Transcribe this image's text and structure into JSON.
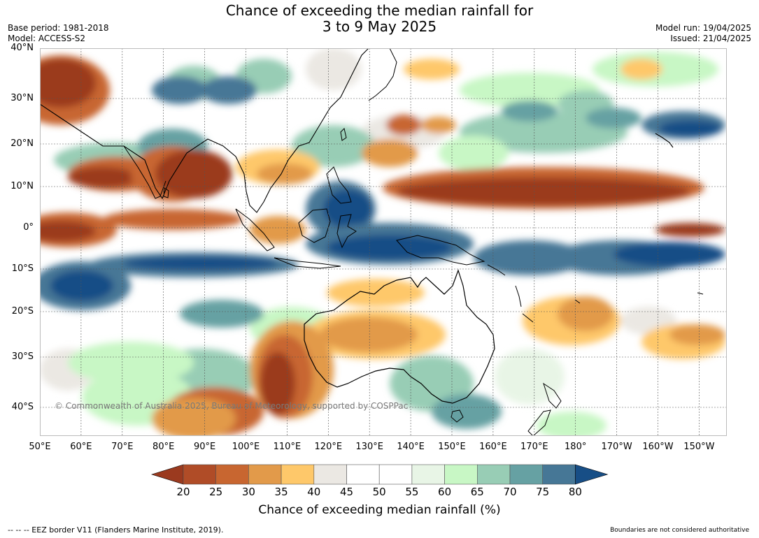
{
  "title": {
    "line1": "Chance of exceeding the median rainfall for",
    "line2": "3 to 9 May 2025"
  },
  "meta": {
    "base_period": "Base period: 1981-2018",
    "model": "Model: ACCESS-S2",
    "model_run": "Model run: 19/04/2025",
    "issued": "Issued: 21/04/2025"
  },
  "map": {
    "lat_labels": [
      "40°N",
      "30°N",
      "20°N",
      "10°N",
      "0°",
      "10°S",
      "20°S",
      "30°S",
      "40°S"
    ],
    "lon_labels": [
      "50°E",
      "60°E",
      "70°E",
      "80°E",
      "90°E",
      "100°E",
      "110°E",
      "120°E",
      "130°E",
      "140°E",
      "150°E",
      "160°E",
      "170°E",
      "180°",
      "170°W",
      "160°W",
      "150°W"
    ],
    "copyright": "© Commonwealth of Australia 2025, Bureau of Meteorology, supported by COSPPac",
    "categories": [
      {
        "range": "<20",
        "color": "#9b3a1f"
      },
      {
        "range": "20-25",
        "color": "#b04c27"
      },
      {
        "range": "25-30",
        "color": "#c86630"
      },
      {
        "range": "30-35",
        "color": "#e29a4a"
      },
      {
        "range": "35-40",
        "color": "#fec86a"
      },
      {
        "range": "40-45",
        "color": "#ebe8e3"
      },
      {
        "range": "45-50",
        "color": "#ffffff"
      },
      {
        "range": "50-55",
        "color": "#ffffff"
      },
      {
        "range": "55-60",
        "color": "#e8f5e6"
      },
      {
        "range": "60-65",
        "color": "#c8f7c5"
      },
      {
        "range": "65-70",
        "color": "#98cdb5"
      },
      {
        "range": "70-75",
        "color": "#66a1a3"
      },
      {
        "range": "75-80",
        "color": "#467796"
      },
      {
        "range": ">80",
        "color": "#174e86"
      }
    ]
  },
  "colorbar": {
    "ticks": [
      "20",
      "25",
      "30",
      "35",
      "40",
      "45",
      "50",
      "55",
      "60",
      "65",
      "70",
      "75",
      "80"
    ],
    "label": "Chance of exceeding median rainfall (%)"
  },
  "footer": {
    "eez": "--  --  -- EEZ border V11 (Flanders Marine Institute, 2019).",
    "boundaries": "Boundaries are not considered authoritative"
  }
}
